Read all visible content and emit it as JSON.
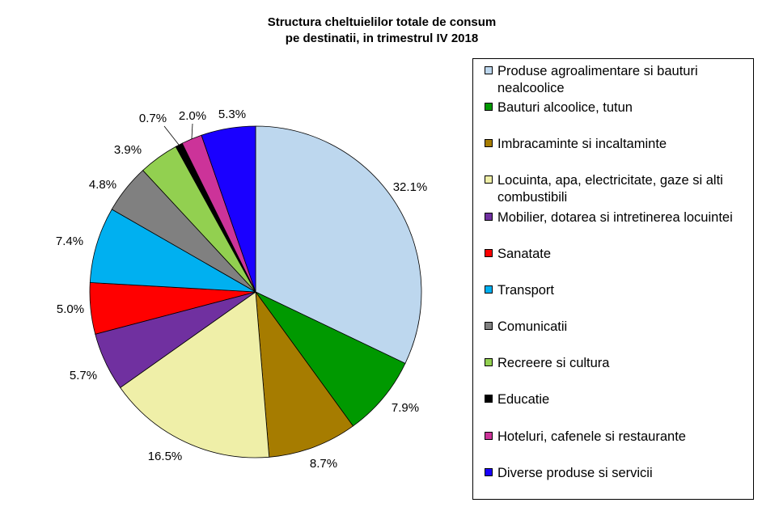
{
  "chart_data": {
    "type": "pie",
    "title": "Structura cheltuielilor totale de consum",
    "subtitle": "pe destinatii, in trimestrul IV 2018",
    "legend_position": "right",
    "slices": [
      {
        "name": "Produse agroalimentare si bauturi nealcoolice",
        "value": 32.1,
        "label": "32.1%",
        "color": "#BDD7EE"
      },
      {
        "name": "Bauturi alcoolice, tutun",
        "value": 7.9,
        "label": "7.9%",
        "color": "#009900"
      },
      {
        "name": "Imbracaminte si incaltaminte",
        "value": 8.7,
        "label": "8.7%",
        "color": "#A67C00"
      },
      {
        "name": "Locuinta, apa, electricitate, gaze si alti combustibili",
        "value": 16.5,
        "label": "16.5%",
        "color": "#EFEFA8"
      },
      {
        "name": "Mobilier, dotarea si intretinerea locuintei",
        "value": 5.7,
        "label": "5.7%",
        "color": "#7030A0"
      },
      {
        "name": "Sanatate",
        "value": 5.0,
        "label": "5.0%",
        "color": "#FF0000"
      },
      {
        "name": "Transport",
        "value": 7.4,
        "label": "7.4%",
        "color": "#00B0F0"
      },
      {
        "name": "Comunicatii",
        "value": 4.8,
        "label": "4.8%",
        "color": "#808080"
      },
      {
        "name": "Recreere si cultura",
        "value": 3.9,
        "label": "3.9%",
        "color": "#92D050"
      },
      {
        "name": "Educatie",
        "value": 0.7,
        "label": "0.7%",
        "color": "#000000"
      },
      {
        "name": "Hoteluri, cafenele si restaurante",
        "value": 2.0,
        "label": "2.0%",
        "color": "#CC3399"
      },
      {
        "name": "Diverse produse si servicii",
        "value": 5.3,
        "label": "5.3%",
        "color": "#1A00FF"
      }
    ]
  }
}
